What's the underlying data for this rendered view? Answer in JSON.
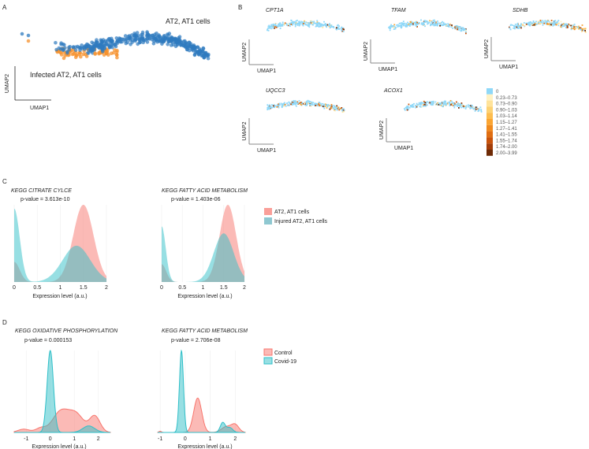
{
  "panels": {
    "a": "A",
    "b": "B",
    "c": "C",
    "d": "D"
  },
  "panel_a": {
    "cluster_labels": [
      "AT2, AT1 cells",
      "Infected AT2, AT1 cells"
    ],
    "xlabel": "UMAP1",
    "ylabel": "UMAP2",
    "colors": {
      "normal": "#2f7bbf",
      "infected": "#f5912e"
    }
  },
  "panel_b": {
    "genes": [
      "CPT1A",
      "TFAM",
      "SDHB",
      "UQCC3",
      "ACOX1"
    ],
    "xlabel": "UMAP1",
    "ylabel": "UMAP2",
    "legend": [
      {
        "label": "0",
        "color": "#8fd8f8"
      },
      {
        "label": "0.23–0.73",
        "color": "#fff2c4"
      },
      {
        "label": "0.73–0.90",
        "color": "#ffe39a"
      },
      {
        "label": "0.90–1.03",
        "color": "#fdd273"
      },
      {
        "label": "1.03–1.14",
        "color": "#fdbd4f"
      },
      {
        "label": "1.15–1.27",
        "color": "#fba532"
      },
      {
        "label": "1.27–1.41",
        "color": "#f08a1e"
      },
      {
        "label": "1.41–1.55",
        "color": "#e06e12"
      },
      {
        "label": "1.55–1.74",
        "color": "#c9530b"
      },
      {
        "label": "1.74–2.00",
        "color": "#a43d08"
      },
      {
        "label": "2.00–3.99",
        "color": "#6e2a06"
      }
    ]
  },
  "chart_data": [
    {
      "type": "area",
      "panel": "C",
      "title": "KEGG CITRATE CYLCE",
      "pvalue": "p-value = 3.613e-10",
      "xlabel": "Expression level (a.u.)",
      "xlim": [
        0,
        2
      ],
      "xticks": [
        "0",
        "0.5",
        "1",
        "1.5",
        "2"
      ],
      "series": [
        {
          "name": "AT2, AT1 cells",
          "color": "#f8766d",
          "components": [
            [
              0,
              0.26,
              0.12
            ],
            [
              1.5,
              1.0,
              0.22
            ]
          ]
        },
        {
          "name": "Injured AT2, AT1 cells",
          "color": "#2fbfc8",
          "components": [
            [
              0,
              0.95,
              0.12
            ],
            [
              1.35,
              0.47,
              0.3
            ]
          ]
        }
      ]
    },
    {
      "type": "area",
      "panel": "C",
      "title": "KEGG FATTY ACID METABOLISM",
      "pvalue": "p-value = 1.403e-06",
      "xlabel": "Expression level (a.u.)",
      "xlim": [
        0,
        2
      ],
      "xticks": [
        "0",
        "0.5",
        "1",
        "1.5",
        "2"
      ],
      "series": [
        {
          "name": "AT2, AT1 cells",
          "color": "#f8766d",
          "components": [
            [
              0,
              0.23,
              0.11
            ],
            [
              1.6,
              1.0,
              0.2
            ]
          ]
        },
        {
          "name": "Injured AT2, AT1 cells",
          "color": "#2fbfc8",
          "components": [
            [
              0,
              0.72,
              0.1
            ],
            [
              1.5,
              0.63,
              0.24
            ]
          ]
        }
      ]
    },
    {
      "type": "area",
      "panel": "D",
      "title": "KEGG OXIDATIVE PHOSPHORYLATION",
      "pvalue": "p-value = 0.000153",
      "xlabel": "Expression level (a.u.)",
      "xlim": [
        -1.5,
        2.5
      ],
      "xticks": [
        "-1",
        "0",
        "1",
        "2"
      ],
      "series": [
        {
          "name": "Control",
          "color": "#f8766d",
          "components": [
            [
              -1.1,
              0.04,
              0.25
            ],
            [
              -0.4,
              0.05,
              0.2
            ],
            [
              0.45,
              0.26,
              0.35
            ],
            [
              1.1,
              0.2,
              0.3
            ],
            [
              1.85,
              0.2,
              0.22
            ]
          ]
        },
        {
          "name": "Covid-19",
          "color": "#2fbfc8",
          "components": [
            [
              0,
              1.0,
              0.13
            ],
            [
              1.6,
              0.08,
              0.25
            ]
          ]
        }
      ]
    },
    {
      "type": "area",
      "panel": "D",
      "title": "KEGG FATTY ACID METABOLISM",
      "pvalue": "p-value = 2.706e-08",
      "xlabel": "Expression level (a.u.)",
      "xlim": [
        -1.1,
        2.4
      ],
      "xticks": [
        "-1",
        "0",
        "1",
        "2"
      ],
      "series": [
        {
          "name": "Control",
          "color": "#f8766d",
          "components": [
            [
              -1.0,
              0.015,
              0.05
            ],
            [
              0.5,
              0.42,
              0.16
            ],
            [
              1.65,
              0.07,
              0.2
            ],
            [
              2.0,
              0.09,
              0.15
            ]
          ]
        },
        {
          "name": "Covid-19",
          "color": "#2fbfc8",
          "components": [
            [
              -0.15,
              1.0,
              0.08
            ],
            [
              1.5,
              0.12,
              0.1
            ],
            [
              1.78,
              0.06,
              0.12
            ]
          ]
        }
      ]
    }
  ]
}
